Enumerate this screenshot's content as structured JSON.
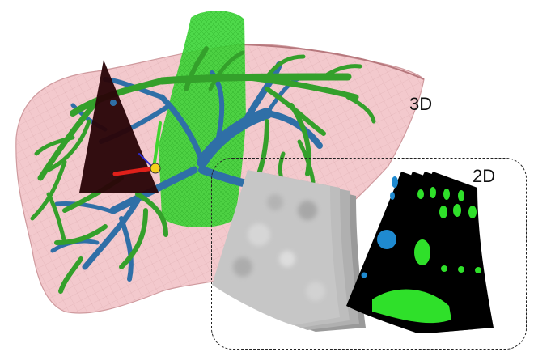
{
  "labels": {
    "three_d": "3D",
    "two_d": "2D"
  },
  "colors": {
    "liver_fill": "#f3c9cd",
    "liver_edge": "#cf9a9e",
    "portal_vein": "#34a02b",
    "hepatic_vein": "#2f6fa7",
    "ivc": "#2fd22a",
    "plane": "#2a0508",
    "axis_x": "#e0201a",
    "axis_y": "#3fd62f",
    "axis_z": "#2b2bd0",
    "seg_background": "#000000",
    "seg_green": "#2fe02a",
    "seg_blue": "#1f8ad0"
  },
  "icons": [
    "liver-mesh",
    "portal-vein-tree",
    "hepatic-vein-tree",
    "vena-cava",
    "slice-plane",
    "probe-axes",
    "ultrasound-fan",
    "segmentation-fan"
  ]
}
